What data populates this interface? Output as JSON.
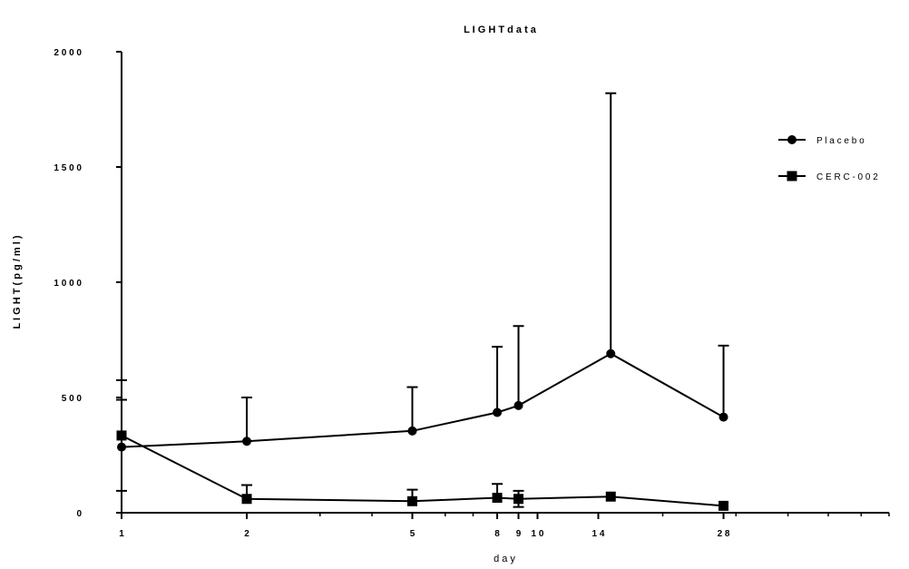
{
  "chart_data": {
    "type": "line",
    "title": "L I G H T  d a t a",
    "xlabel": "d a y",
    "ylabel": "L I G H T  ( p g / m l )",
    "x_scale": "log",
    "xlim": [
      1,
      70
    ],
    "ylim": [
      0,
      2000
    ],
    "x_ticks": [
      {
        "value": 1,
        "label": "1"
      },
      {
        "value": 2,
        "label": "2"
      },
      {
        "value": 5,
        "label": "5"
      },
      {
        "value": 8,
        "label": "8"
      },
      {
        "value": 9,
        "label": "9"
      },
      {
        "value": 10,
        "label": "1 0"
      },
      {
        "value": 14,
        "label": "1 4"
      },
      {
        "value": 28,
        "label": "2 8"
      }
    ],
    "y_ticks": [
      {
        "value": 0,
        "label": "0"
      },
      {
        "value": 500,
        "label": "5 0 0"
      },
      {
        "value": 1000,
        "label": "1 0 0 0"
      },
      {
        "value": 1500,
        "label": "1 5 0 0"
      },
      {
        "value": 2000,
        "label": "2 0 0 0"
      }
    ],
    "grid": false,
    "legend_position": "right",
    "series": [
      {
        "name": "P l a c e b o",
        "marker": "circle",
        "color": "#000000",
        "x": [
          1,
          2,
          5,
          8,
          9,
          15,
          28
        ],
        "y": [
          285,
          310,
          355,
          435,
          465,
          690,
          415
        ],
        "err_upper": [
          575,
          500,
          545,
          720,
          810,
          1820,
          725
        ],
        "err_lower": [
          95,
          null,
          null,
          null,
          null,
          null,
          null
        ]
      },
      {
        "name": "C E R C - 0 0 2",
        "marker": "square",
        "color": "#000000",
        "x": [
          1,
          2,
          5,
          8,
          9,
          15,
          28
        ],
        "y": [
          335,
          60,
          50,
          65,
          60,
          70,
          30
        ],
        "err_upper": [
          490,
          120,
          100,
          125,
          95,
          null,
          null
        ],
        "err_lower": [
          null,
          null,
          null,
          null,
          25,
          null,
          null
        ]
      }
    ]
  }
}
